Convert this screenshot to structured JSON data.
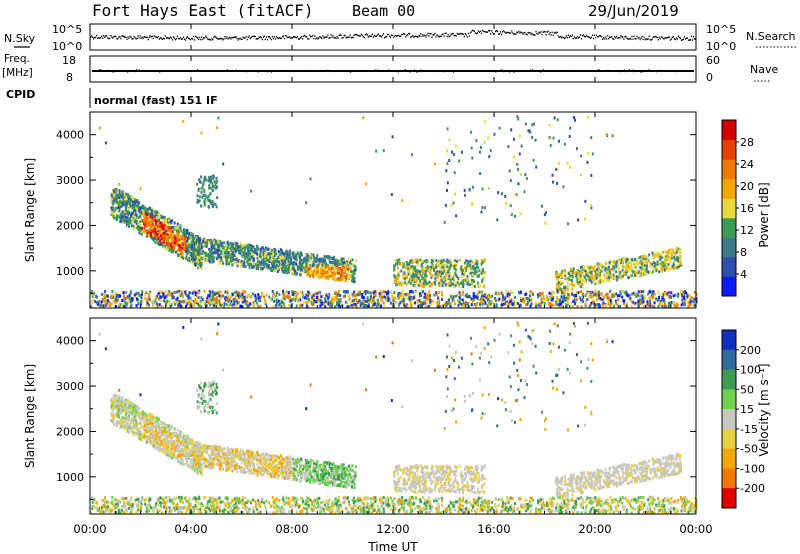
{
  "header": {
    "station": "Fort Hays East (fitACF)",
    "beam": "Beam 00",
    "date": "29/Jun/2019"
  },
  "panels": {
    "nsky": {
      "left_label": "N.Sky",
      "right_label": "N.Search",
      "left_ticks": [
        "10^5",
        "10^0"
      ],
      "right_ticks": [
        "10^5",
        "10^0"
      ]
    },
    "freq": {
      "left_label_1": "Freq.",
      "left_label_2": "[MHz]",
      "right_label": "Nave",
      "left_ticks": [
        "18",
        "8"
      ],
      "right_ticks": [
        "60",
        "0"
      ]
    },
    "cpid": {
      "label": "CPID",
      "mode_text": "normal (fast) 151 IF"
    }
  },
  "chart_data": [
    {
      "type": "heatmap",
      "name": "power",
      "ylabel": "Slant Range [km]",
      "y_ticks": [
        "1000",
        "2000",
        "3000",
        "4000"
      ],
      "y_tick_values": [
        1000,
        2000,
        3000,
        4000
      ],
      "ylim": [
        180,
        4500
      ],
      "colorbar": {
        "label": "Power [dB]",
        "tick_labels": [
          "4",
          "8",
          "12",
          "16",
          "20",
          "24",
          "28"
        ],
        "colors": [
          "#0a1cff",
          "#2e4fb0",
          "#3a7a8a",
          "#3c9c50",
          "#e8d83c",
          "#f3a800",
          "#f07a00",
          "#e84000",
          "#d40000"
        ]
      }
    },
    {
      "type": "heatmap",
      "name": "velocity",
      "ylabel": "Slant Range [km]",
      "y_ticks": [
        "1000",
        "2000",
        "3000",
        "4000"
      ],
      "y_tick_values": [
        1000,
        2000,
        3000,
        4000
      ],
      "ylim": [
        180,
        4500
      ],
      "xlabel": "Time UT",
      "x_ticks": [
        "00:00",
        "04:00",
        "08:00",
        "12:00",
        "16:00",
        "20:00",
        "00:00"
      ],
      "x_tick_values": [
        0,
        4,
        8,
        12,
        16,
        20,
        24
      ],
      "xlim": [
        0,
        24
      ],
      "colorbar": {
        "label": "Velocity [m s⁻¹]",
        "tick_labels": [
          "200",
          "100",
          "50",
          "15",
          "-15",
          "-50",
          "-100",
          "-200"
        ],
        "colors": [
          "#1030c0",
          "#2e6a9e",
          "#3c9c50",
          "#70d050",
          "#c8c8c0",
          "#e8d040",
          "#f3a800",
          "#f07a00",
          "#e00000"
        ]
      }
    }
  ]
}
